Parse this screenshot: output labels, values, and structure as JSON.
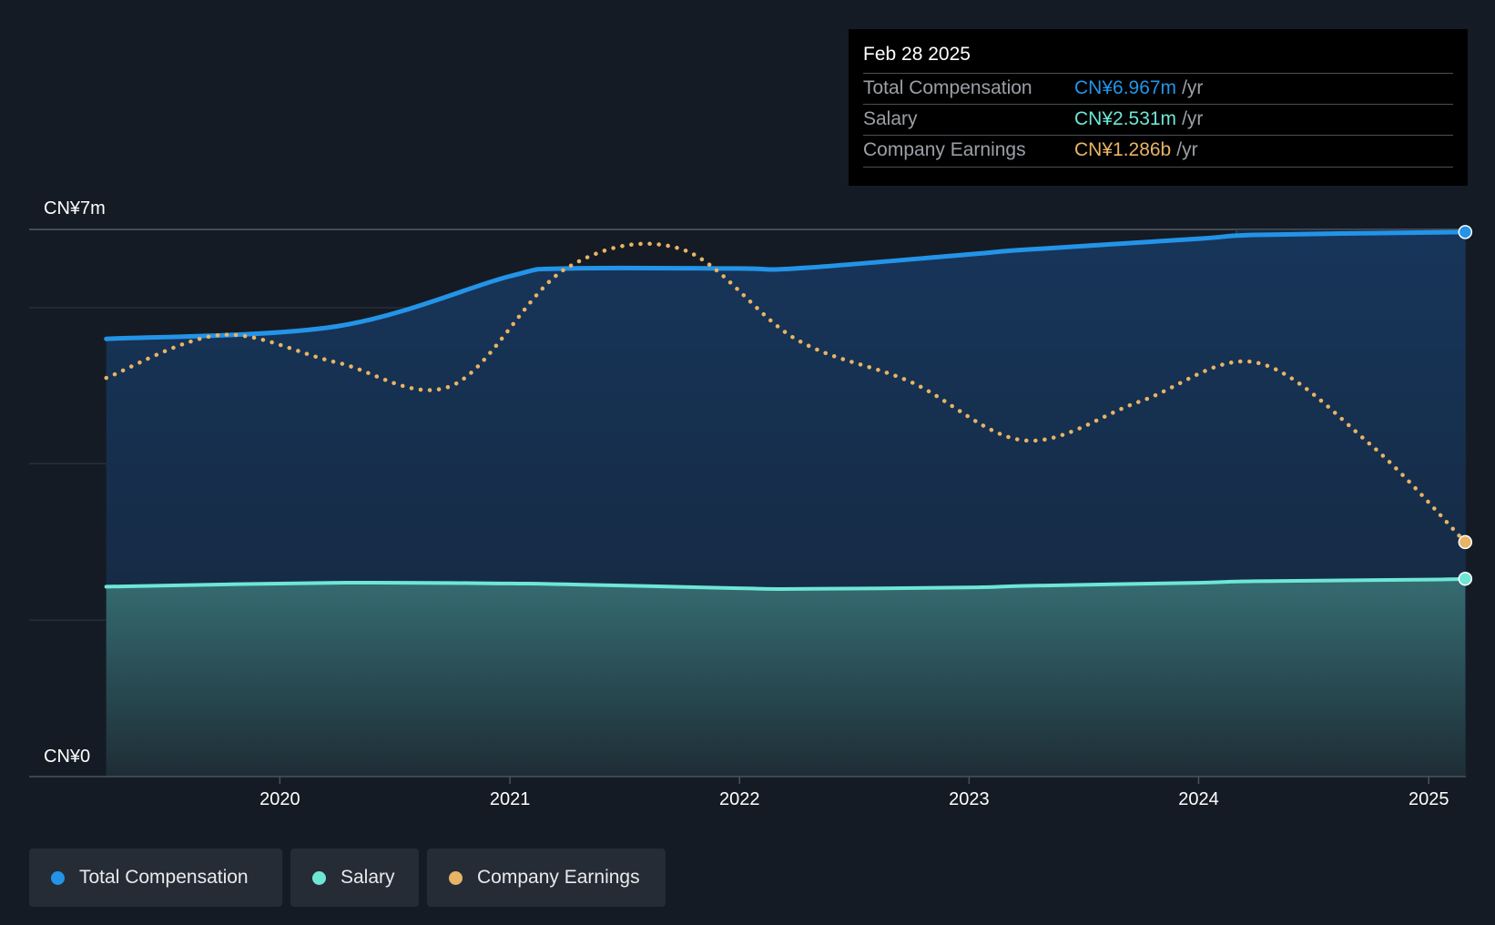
{
  "colors": {
    "total_compensation": "#2394e8",
    "salary": "#6ee6d6",
    "company_earnings": "#e8b465",
    "background": "#151b24"
  },
  "tooltip": {
    "date": "Feb 28 2025",
    "rows": [
      {
        "label": "Total Compensation",
        "value": "CN¥6.967m",
        "unit": "/yr",
        "color": "#2394e8"
      },
      {
        "label": "Salary",
        "value": "CN¥2.531m",
        "unit": "/yr",
        "color": "#6ee6d6"
      },
      {
        "label": "Company Earnings",
        "value": "CN¥1.286b",
        "unit": "/yr",
        "color": "#e8b465"
      }
    ]
  },
  "legend": [
    {
      "label": "Total Compensation",
      "color": "#2394e8"
    },
    {
      "label": "Salary",
      "color": "#6ee6d6"
    },
    {
      "label": "Company Earnings",
      "color": "#e8b465"
    }
  ],
  "chart_data": {
    "type": "area",
    "y_top_label": "CN¥7m",
    "y_bottom_label": "CN¥0",
    "ylim": [
      0,
      7
    ],
    "y_unit": "CN¥m",
    "x_ticks": [
      "2020",
      "2021",
      "2022",
      "2023",
      "2024",
      "2025"
    ],
    "xlim": [
      "2019-03-01",
      "2025-03-01"
    ],
    "grid": true,
    "legend_position": "bottom-left",
    "highlight_x": "2024-03-01",
    "series": [
      {
        "name": "Total Compensation",
        "type": "area",
        "x": [
          "2019-03-31",
          "2020-03-31",
          "2020-12-31",
          "2021-03-31",
          "2021-12-31",
          "2022-03-31",
          "2022-12-31",
          "2023-03-31",
          "2023-12-31",
          "2024-03-31",
          "2024-12-31",
          "2025-02-28"
        ],
        "values": [
          5.6,
          5.76,
          6.4,
          6.5,
          6.5,
          6.5,
          6.68,
          6.74,
          6.88,
          6.93,
          6.96,
          6.967
        ]
      },
      {
        "name": "Salary",
        "type": "area",
        "x": [
          "2019-03-31",
          "2020-03-31",
          "2020-12-31",
          "2021-03-31",
          "2021-12-31",
          "2022-03-31",
          "2022-12-31",
          "2023-03-31",
          "2023-12-31",
          "2024-03-31",
          "2024-12-31",
          "2025-02-28"
        ],
        "values": [
          2.43,
          2.48,
          2.47,
          2.46,
          2.41,
          2.4,
          2.42,
          2.44,
          2.48,
          2.5,
          2.52,
          2.531
        ]
      },
      {
        "name": "Company Earnings",
        "type": "line",
        "style": "dotted",
        "note": "plotted on an independent scale; latest value CN¥1.286b",
        "x": [
          "2019-03-31",
          "2019-09-30",
          "2020-03-31",
          "2020-09-30",
          "2021-03-31",
          "2021-09-30",
          "2022-03-31",
          "2022-09-30",
          "2023-03-31",
          "2023-09-30",
          "2024-03-31",
          "2024-09-30",
          "2025-02-28"
        ],
        "values": [
          5.1,
          5.65,
          5.3,
          5.0,
          6.5,
          6.75,
          5.6,
          5.05,
          4.3,
          4.8,
          5.3,
          4.25,
          3.0
        ]
      }
    ]
  }
}
